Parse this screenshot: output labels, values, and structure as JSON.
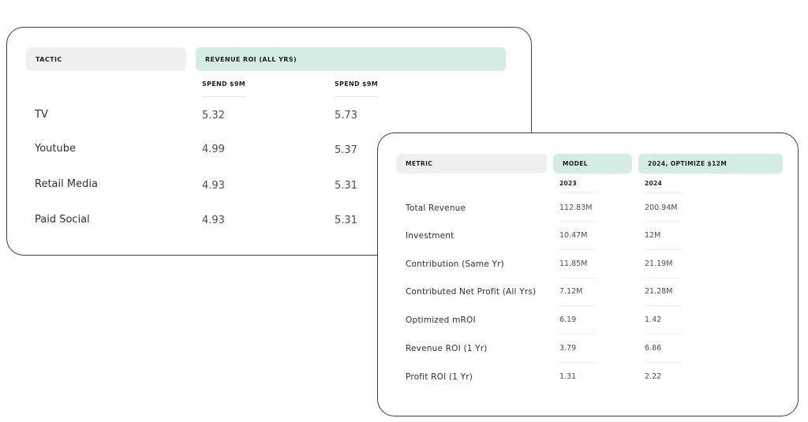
{
  "roi_table": {
    "headers": {
      "tactic": "TACTIC",
      "revenue_roi": "REVENUE ROI (ALL YRS)"
    },
    "subheaders": [
      "SPEND $9M",
      "SPEND $9M"
    ],
    "rows": [
      {
        "tactic": "TV",
        "v1": "5.32",
        "v2": "5.73"
      },
      {
        "tactic": "Youtube",
        "v1": "4.99",
        "v2": "5.37"
      },
      {
        "tactic": "Retail Media",
        "v1": "4.93",
        "v2": "5.31"
      },
      {
        "tactic": "Paid Social",
        "v1": "4.93",
        "v2": "5.31"
      }
    ]
  },
  "metrics_table": {
    "headers": {
      "metric": "METRIC",
      "model": "MODEL",
      "optimize": "2024, OPTIMIZE $12M"
    },
    "subheaders": [
      "2023",
      "2024"
    ],
    "rows": [
      {
        "metric": "Total Revenue",
        "v2023": "112.83M",
        "v2024": "200.94M"
      },
      {
        "metric": "Investment",
        "v2023": "10.47M",
        "v2024": "12M"
      },
      {
        "metric": "Contribution (Same Yr)",
        "v2023": "11.85M",
        "v2024": "21.19M"
      },
      {
        "metric": "Contributed Net Profit (All Yrs)",
        "v2023": "7.12M",
        "v2024": "21.28M"
      },
      {
        "metric": "Optimized mROI",
        "v2023": "6.19",
        "v2024": "1.42"
      },
      {
        "metric": "Revenue ROI (1 Yr)",
        "v2023": "3.79",
        "v2024": "6.86"
      },
      {
        "metric": "Profit ROI (1 Yr)",
        "v2023": "1.31",
        "v2024": "2.22"
      }
    ]
  },
  "colors": {
    "header_gray": "#eef0f1",
    "header_green": "#d4ece1",
    "card_border": "#3a3c40"
  }
}
